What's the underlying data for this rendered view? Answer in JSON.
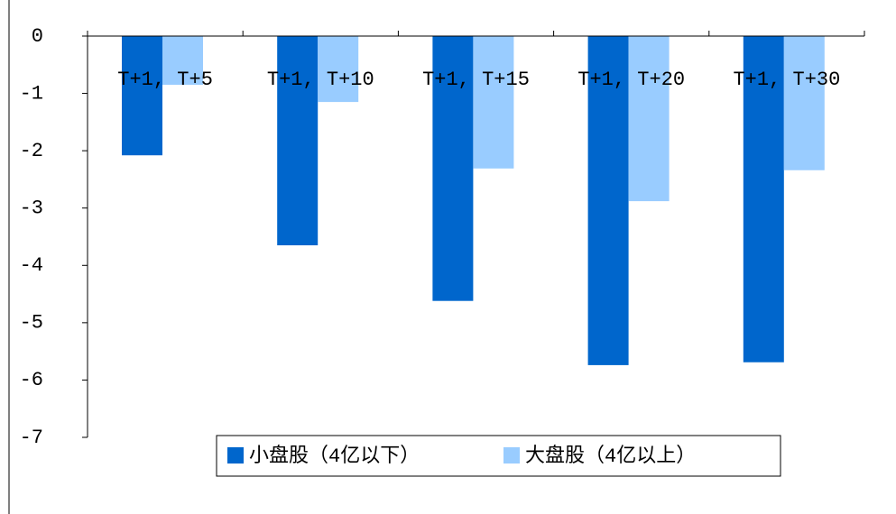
{
  "chart_data": {
    "type": "bar",
    "categories": [
      "T+1, T+5",
      "T+1, T+10",
      "T+1, T+15",
      "T+1, T+20",
      "T+1, T+30"
    ],
    "series": [
      {
        "name": "小盘股（4亿以下）",
        "color": "#0066cc",
        "values": [
          -2.08,
          -3.65,
          -4.62,
          -5.74,
          -5.69
        ]
      },
      {
        "name": "大盘股（4亿以上）",
        "color": "#99ccff",
        "values": [
          -0.85,
          -1.15,
          -2.31,
          -2.88,
          -2.34
        ]
      }
    ],
    "ylim": [
      -7,
      0
    ],
    "yticks": [
      0,
      -1,
      -2,
      -3,
      -4,
      -5,
      -6,
      -7
    ]
  }
}
